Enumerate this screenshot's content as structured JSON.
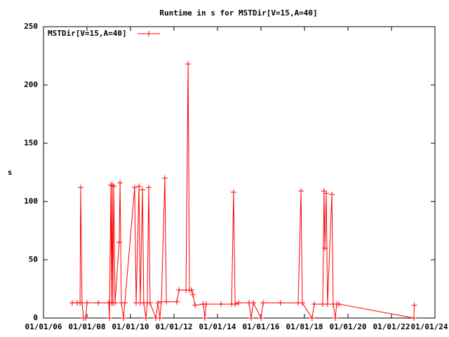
{
  "chart_data": {
    "type": "line",
    "title": "Runtime in s for MSTDir[V=15,A=40]",
    "y_label": "s",
    "legend": "top-left",
    "grid": false,
    "xlim": [
      2006,
      2024
    ],
    "xticks": [
      {
        "value": 2006,
        "label": "01/01/06"
      },
      {
        "value": 2008,
        "label": "01/01/08"
      },
      {
        "value": 2010,
        "label": "01/01/10"
      },
      {
        "value": 2012,
        "label": "01/01/12"
      },
      {
        "value": 2014,
        "label": "01/01/14"
      },
      {
        "value": 2016,
        "label": "01/01/16"
      },
      {
        "value": 2018,
        "label": "01/01/18"
      },
      {
        "value": 2020,
        "label": "01/01/20"
      },
      {
        "value": 2022,
        "label": "01/01/22"
      },
      {
        "value": 2024,
        "label": "01/01/24"
      }
    ],
    "ylim": [
      0,
      250
    ],
    "yticks": [
      0,
      50,
      100,
      150,
      200,
      250
    ],
    "x": [
      2007.32,
      2007.55,
      2007.68,
      2007.71,
      2007.77,
      2007.84,
      2007.94,
      2008.0,
      2008.52,
      2009.0,
      2009.03,
      2009.1,
      2009.13,
      2009.16,
      2009.19,
      2009.23,
      2009.29,
      2009.48,
      2009.52,
      2009.58,
      2009.68,
      2009.74,
      2010.19,
      2010.26,
      2010.39,
      2010.45,
      2010.55,
      2010.61,
      2010.71,
      2010.77,
      2010.84,
      2010.9,
      2011.16,
      2011.26,
      2011.35,
      2011.42,
      2011.58,
      2011.65,
      2012.13,
      2012.23,
      2012.55,
      2012.65,
      2012.71,
      2012.81,
      2012.87,
      2012.97,
      2013.35,
      2013.42,
      2013.48,
      2014.16,
      2014.65,
      2014.74,
      2014.81,
      2014.97,
      2015.45,
      2015.55,
      2015.65,
      2016.0,
      2016.1,
      2016.9,
      2017.71,
      2017.84,
      2017.9,
      2018.35,
      2018.45,
      2018.84,
      2018.9,
      2018.94,
      2019.0,
      2019.06,
      2019.26,
      2019.32,
      2019.42,
      2019.48,
      2019.58,
      2023.03,
      2023.05
    ],
    "series": [
      {
        "name": "MSTDir[V=15,A=40]",
        "color": "#ff0000",
        "values": [
          13,
          13,
          13,
          112,
          13,
          0,
          0,
          13,
          13,
          13,
          0,
          114,
          13,
          114,
          13,
          113,
          13,
          65,
          116,
          13,
          0,
          13,
          112,
          13,
          113,
          13,
          110,
          13,
          0,
          13,
          112,
          13,
          0,
          13,
          0,
          14,
          120,
          14,
          14,
          24,
          24,
          218,
          24,
          24,
          20,
          11,
          12,
          0,
          12,
          12,
          12,
          108,
          12,
          13,
          13,
          0,
          13,
          0,
          13,
          13,
          13,
          109,
          13,
          0,
          12,
          12,
          109,
          60,
          107,
          12,
          106,
          12,
          0,
          12,
          12,
          0,
          11
        ]
      }
    ]
  }
}
